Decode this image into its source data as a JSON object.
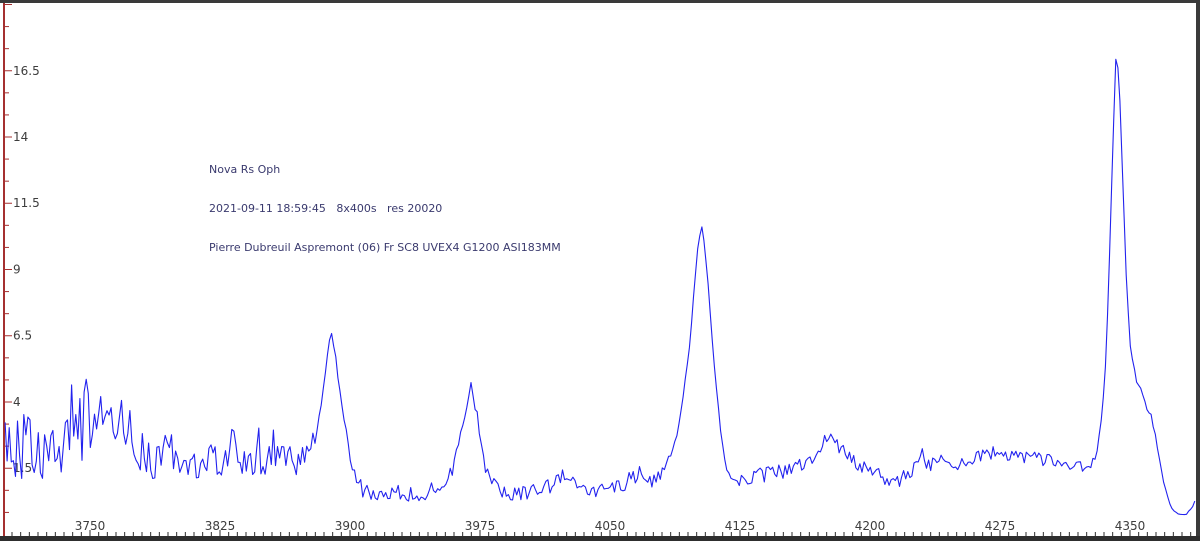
{
  "window": {
    "background": "#ffffff",
    "border_color": "#3a3a3a",
    "bottom_bar_color": "#2e2e2e"
  },
  "annotation": {
    "color": "#3a3a6e",
    "line1": "Nova Rs Oph",
    "line2": "2021-09-11 18:59:45   8x400s   res 20020",
    "line3": "Pierre Dubreuil Aspremont (06) Fr SC8 UVEX4 G1200 ASI183MM"
  },
  "chart_data": {
    "type": "line",
    "title": "Nova Rs Oph",
    "xlabel": "",
    "ylabel": "",
    "grid": false,
    "legend": "none",
    "x_axis": {
      "min": 3701,
      "max": 4388,
      "major_tick_values": [
        3750,
        3825,
        3900,
        3975,
        4050,
        4125,
        4200,
        4275,
        4350
      ],
      "tick_labels": [
        "3750",
        "3825",
        "3900",
        "3975",
        "4050",
        "4125",
        "4200",
        "4275",
        "4350"
      ],
      "minor_step": 5,
      "axis_color": "#2e2e2e",
      "label_color": "#3d3d3d"
    },
    "y_axis": {
      "min": -1.0,
      "max": 19.0,
      "major_tick_values": [
        16.5,
        14,
        11.5,
        9,
        6.5,
        4,
        1.5
      ],
      "tick_labels": [
        "16.5",
        "14",
        "11.5",
        "9",
        "6.5",
        "4",
        "1.5"
      ],
      "axis_color": "#a53030",
      "label_color": "#3d3d3d"
    },
    "series": [
      {
        "name": "spectrum",
        "color": "#2222ee",
        "noise_seed": 20210911,
        "envelope_points_format": [
          "wavelength_A",
          "flux",
          "noise_amplitude"
        ],
        "envelope": [
          [
            3701,
            2.6,
            1.0
          ],
          [
            3706,
            2.4,
            1.2
          ],
          [
            3712,
            2.3,
            1.5
          ],
          [
            3716,
            2.2,
            1.6
          ],
          [
            3720,
            2.0,
            1.1
          ],
          [
            3726,
            2.3,
            0.9
          ],
          [
            3732,
            2.6,
            0.9
          ],
          [
            3738,
            2.9,
            0.9
          ],
          [
            3744,
            3.2,
            1.0
          ],
          [
            3749,
            3.3,
            1.5
          ],
          [
            3753,
            3.4,
            1.0
          ],
          [
            3758,
            3.5,
            0.9
          ],
          [
            3763,
            3.5,
            0.9
          ],
          [
            3768,
            3.2,
            0.9
          ],
          [
            3773,
            2.8,
            0.9
          ],
          [
            3778,
            2.3,
            0.8
          ],
          [
            3784,
            1.9,
            0.8
          ],
          [
            3790,
            1.7,
            0.7
          ],
          [
            3796,
            2.3,
            0.8
          ],
          [
            3800,
            2.1,
            0.8
          ],
          [
            3806,
            1.6,
            0.7
          ],
          [
            3812,
            1.5,
            0.7
          ],
          [
            3818,
            1.6,
            0.7
          ],
          [
            3824,
            1.8,
            0.8
          ],
          [
            3830,
            2.1,
            0.8
          ],
          [
            3834,
            2.5,
            0.8
          ],
          [
            3838,
            1.8,
            0.7
          ],
          [
            3844,
            1.6,
            0.7
          ],
          [
            3850,
            1.9,
            0.7
          ],
          [
            3856,
            2.3,
            0.7
          ],
          [
            3860,
            2.0,
            0.7
          ],
          [
            3866,
            1.7,
            0.6
          ],
          [
            3871,
            1.8,
            0.5
          ],
          [
            3876,
            2.2,
            0.4
          ],
          [
            3880,
            2.8,
            0.35
          ],
          [
            3884,
            4.2,
            0.25
          ],
          [
            3887,
            5.8,
            0.15
          ],
          [
            3889,
            6.75,
            0.1
          ],
          [
            3891,
            6.0,
            0.15
          ],
          [
            3894,
            4.6,
            0.2
          ],
          [
            3897,
            3.2,
            0.25
          ],
          [
            3900,
            2.0,
            0.25
          ],
          [
            3903,
            1.2,
            0.25
          ],
          [
            3907,
            0.7,
            0.3
          ],
          [
            3913,
            0.55,
            0.3
          ],
          [
            3920,
            0.5,
            0.3
          ],
          [
            3928,
            0.6,
            0.3
          ],
          [
            3936,
            0.55,
            0.3
          ],
          [
            3944,
            0.6,
            0.3
          ],
          [
            3951,
            0.8,
            0.3
          ],
          [
            3957,
            1.1,
            0.3
          ],
          [
            3961,
            1.9,
            0.3
          ],
          [
            3964,
            2.9,
            0.25
          ],
          [
            3966,
            3.4,
            0.2
          ],
          [
            3968,
            4.2,
            0.15
          ],
          [
            3970,
            4.75,
            0.12
          ],
          [
            3972,
            4.0,
            0.2
          ],
          [
            3975,
            2.8,
            0.25
          ],
          [
            3978,
            1.6,
            0.25
          ],
          [
            3982,
            0.9,
            0.3
          ],
          [
            3988,
            0.6,
            0.3
          ],
          [
            3996,
            0.5,
            0.3
          ],
          [
            4004,
            0.55,
            0.3
          ],
          [
            4012,
            0.7,
            0.33
          ],
          [
            4019,
            1.0,
            0.35
          ],
          [
            4024,
            1.3,
            0.35
          ],
          [
            4029,
            0.9,
            0.33
          ],
          [
            4036,
            0.7,
            0.3
          ],
          [
            4044,
            0.7,
            0.3
          ],
          [
            4052,
            0.8,
            0.33
          ],
          [
            4060,
            1.0,
            0.35
          ],
          [
            4066,
            1.3,
            0.35
          ],
          [
            4071,
            1.0,
            0.3
          ],
          [
            4077,
            1.1,
            0.28
          ],
          [
            4083,
            1.6,
            0.22
          ],
          [
            4088,
            2.6,
            0.18
          ],
          [
            4092,
            4.0,
            0.15
          ],
          [
            4096,
            6.2,
            0.12
          ],
          [
            4099,
            8.6,
            0.1
          ],
          [
            4101,
            10.0,
            0.08
          ],
          [
            4103,
            10.6,
            0.07
          ],
          [
            4105,
            9.7,
            0.1
          ],
          [
            4108,
            7.2,
            0.12
          ],
          [
            4111,
            4.8,
            0.15
          ],
          [
            4114,
            2.8,
            0.18
          ],
          [
            4117,
            1.6,
            0.2
          ],
          [
            4121,
            1.1,
            0.25
          ],
          [
            4128,
            1.1,
            0.3
          ],
          [
            4136,
            1.2,
            0.3
          ],
          [
            4144,
            1.3,
            0.3
          ],
          [
            4152,
            1.45,
            0.3
          ],
          [
            4160,
            1.6,
            0.3
          ],
          [
            4168,
            2.0,
            0.3
          ],
          [
            4174,
            2.5,
            0.3
          ],
          [
            4178,
            2.8,
            0.28
          ],
          [
            4182,
            2.3,
            0.3
          ],
          [
            4188,
            1.9,
            0.3
          ],
          [
            4195,
            1.6,
            0.3
          ],
          [
            4202,
            1.35,
            0.3
          ],
          [
            4208,
            1.1,
            0.28
          ],
          [
            4213,
            0.9,
            0.25
          ],
          [
            4218,
            1.1,
            0.28
          ],
          [
            4224,
            1.4,
            0.3
          ],
          [
            4229,
            2.1,
            0.3
          ],
          [
            4233,
            1.7,
            0.3
          ],
          [
            4238,
            1.6,
            0.3
          ],
          [
            4242,
            2.1,
            0.3
          ],
          [
            4247,
            1.6,
            0.3
          ],
          [
            4254,
            1.8,
            0.3
          ],
          [
            4262,
            2.0,
            0.3
          ],
          [
            4269,
            2.1,
            0.3
          ],
          [
            4276,
            1.9,
            0.3
          ],
          [
            4284,
            1.85,
            0.3
          ],
          [
            4292,
            2.0,
            0.3
          ],
          [
            4300,
            1.85,
            0.3
          ],
          [
            4308,
            1.7,
            0.28
          ],
          [
            4316,
            1.6,
            0.25
          ],
          [
            4323,
            1.55,
            0.22
          ],
          [
            4328,
            1.7,
            0.18
          ],
          [
            4331,
            2.2,
            0.15
          ],
          [
            4334,
            3.6,
            0.12
          ],
          [
            4336,
            5.5,
            0.1
          ],
          [
            4338,
            9.0,
            0.08
          ],
          [
            4340,
            13.5,
            0.05
          ],
          [
            4342,
            17.35,
            0.03
          ],
          [
            4344,
            15.8,
            0.05
          ],
          [
            4346,
            12.0,
            0.08
          ],
          [
            4348,
            8.5,
            0.1
          ],
          [
            4350,
            6.2,
            0.12
          ],
          [
            4352,
            5.2,
            0.15
          ],
          [
            4355,
            4.7,
            0.18
          ],
          [
            4358,
            4.0,
            0.2
          ],
          [
            4361,
            3.7,
            0.18
          ],
          [
            4364,
            2.9,
            0.15
          ],
          [
            4367,
            1.9,
            0.12
          ],
          [
            4370,
            0.8,
            0.1
          ],
          [
            4373,
            0.1,
            0.07
          ],
          [
            4377,
            -0.22,
            0.04
          ],
          [
            4381,
            -0.24,
            0.04
          ],
          [
            4385,
            -0.1,
            0.12
          ],
          [
            4388,
            0.3,
            0.2
          ]
        ],
        "main_peaks": [
          {
            "wavelength": 3889,
            "flux": 6.8
          },
          {
            "wavelength": 3969,
            "flux": 4.8
          },
          {
            "wavelength": 4102,
            "flux": 10.6
          },
          {
            "wavelength": 4177,
            "flux": 3.0
          },
          {
            "wavelength": 4342,
            "flux": 17.4
          }
        ]
      }
    ]
  }
}
